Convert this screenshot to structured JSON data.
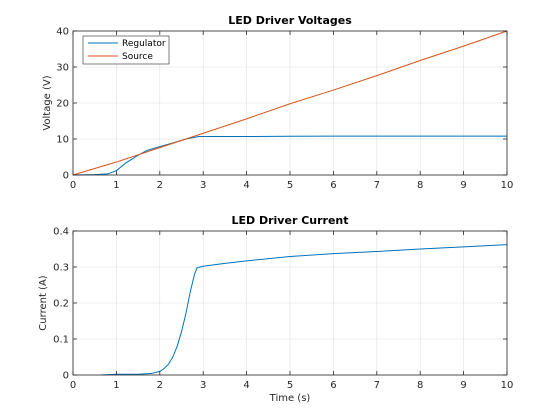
{
  "chart_data": [
    {
      "type": "line",
      "title": "LED Driver Voltages",
      "xlabel": "",
      "ylabel": "Voltage (V)",
      "xlim": [
        0,
        10
      ],
      "ylim": [
        0,
        40
      ],
      "xticks": [
        0,
        1,
        2,
        3,
        4,
        5,
        6,
        7,
        8,
        9,
        10
      ],
      "yticks": [
        0,
        10,
        20,
        30,
        40
      ],
      "grid": true,
      "legend_position": "top-left",
      "series": [
        {
          "name": "Regulator",
          "color": "#0072BD",
          "x": [
            0,
            0.5,
            0.8,
            1.0,
            1.2,
            1.5,
            1.7,
            2.0,
            2.3,
            2.6,
            2.9,
            3.5,
            4.0,
            5.0,
            6.0,
            7.0,
            8.0,
            9.0,
            10.0
          ],
          "y": [
            0,
            0.1,
            0.3,
            1.2,
            3.2,
            5.5,
            6.8,
            7.9,
            8.9,
            10.0,
            10.7,
            10.7,
            10.7,
            10.75,
            10.8,
            10.8,
            10.8,
            10.8,
            10.8
          ]
        },
        {
          "name": "Source",
          "color": "#D95319",
          "x": [
            0,
            1,
            2,
            3,
            4,
            5,
            6,
            7,
            8,
            9,
            10
          ],
          "y": [
            0,
            3.6,
            7.6,
            11.6,
            15.6,
            19.8,
            23.6,
            27.6,
            31.8,
            35.8,
            40
          ]
        }
      ]
    },
    {
      "type": "line",
      "title": "LED Driver Current",
      "xlabel": "Time (s)",
      "ylabel": "Current (A)",
      "xlim": [
        0,
        10
      ],
      "ylim": [
        0,
        0.4
      ],
      "xticks": [
        0,
        1,
        2,
        3,
        4,
        5,
        6,
        7,
        8,
        9,
        10
      ],
      "yticks": [
        0,
        0.1,
        0.2,
        0.3,
        0.4
      ],
      "grid": true,
      "series": [
        {
          "color": "#0072BD",
          "x": [
            0.65,
            1.0,
            1.5,
            1.8,
            2.0,
            2.1,
            2.2,
            2.3,
            2.4,
            2.5,
            2.6,
            2.7,
            2.8,
            2.86,
            3.0,
            3.5,
            4.0,
            5.0,
            6.0,
            7.0,
            8.0,
            9.0,
            10.0
          ],
          "y": [
            0,
            0.002,
            0.002,
            0.004,
            0.01,
            0.018,
            0.03,
            0.05,
            0.08,
            0.12,
            0.17,
            0.23,
            0.28,
            0.298,
            0.302,
            0.31,
            0.317,
            0.329,
            0.337,
            0.343,
            0.35,
            0.356,
            0.362
          ]
        }
      ]
    }
  ]
}
